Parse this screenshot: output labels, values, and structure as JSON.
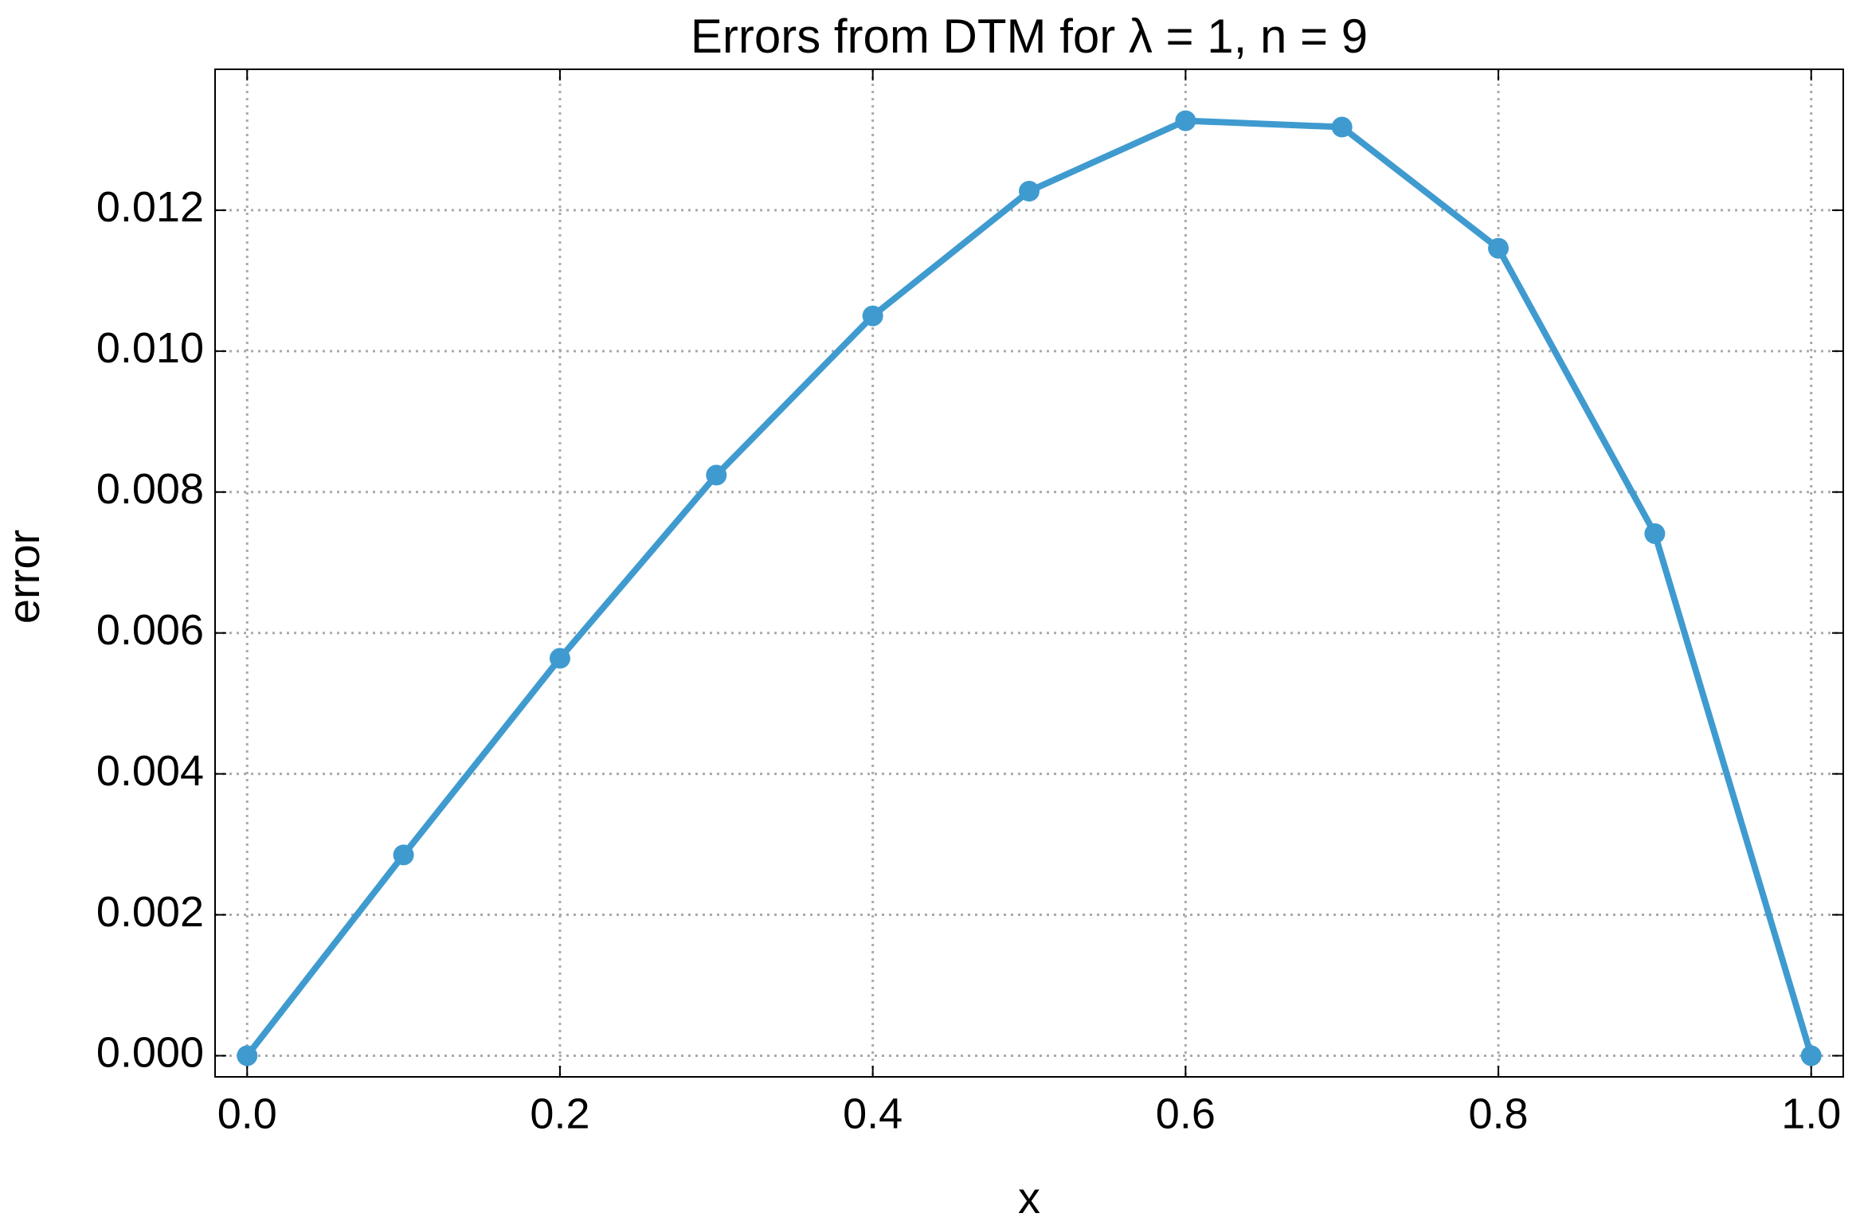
{
  "chart_data": {
    "type": "line",
    "title": "Errors from DTM for λ = 1, n = 9",
    "x_label": "x",
    "y_label": "error",
    "x": [
      0,
      0.1,
      0.2,
      0.3,
      0.4,
      0.5,
      0.6,
      0.7,
      0.8,
      0.9,
      1.0
    ],
    "series": [
      {
        "color": "#3f9bcf",
        "values": [
          0,
          0.00285,
          0.00564,
          0.00824,
          0.0105,
          0.01227,
          0.01327,
          0.01318,
          0.01146,
          0.00741,
          0
        ]
      }
    ],
    "xlim": [
      -0.0205,
      1.0205
    ],
    "ylim": [
      -0.0003,
      0.014
    ],
    "xticks": [
      {
        "value": 0,
        "label": "0.0"
      },
      0.2,
      0.4,
      0.6,
      0.8,
      {
        "value": 1,
        "label": "1.0"
      }
    ],
    "yticks": [
      {
        "value": 0,
        "label": "0.000"
      },
      0.002,
      0.004,
      0.006,
      0.008,
      {
        "value": 0.01,
        "label": "0.010"
      },
      0.012
    ],
    "grid": true,
    "markers": true
  }
}
